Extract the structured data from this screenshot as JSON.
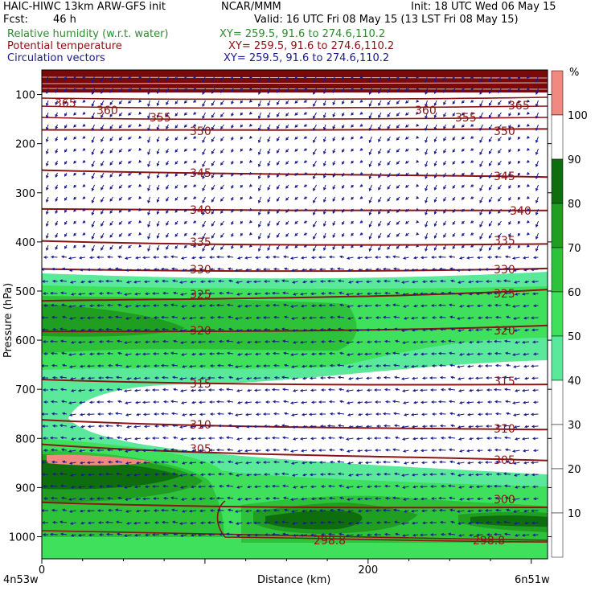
{
  "header": {
    "model": "HAIC-HIWC 13km ARW-GFS init",
    "org": "NCAR/MMM",
    "init": "Init: 18 UTC Wed 06 May 15",
    "fcst_label": "Fcst:",
    "fcst_value": "46 h",
    "valid": "Valid: 16 UTC Fri 08 May 15 (13 LST Fri 08 May 15)",
    "fields": [
      {
        "name": "Relative humidity (w.r.t. water)",
        "xy": "XY= 259.5, 91.6 to 274.6,110.2",
        "color": "#2e8b2e"
      },
      {
        "name": "Potential temperature",
        "xy": "XY= 259.5, 91.6 to 274.6,110.2",
        "color": "#8b1010"
      },
      {
        "name": "Circulation vectors",
        "xy": "XY= 259.5, 91.6 to 274.6,110.2",
        "color": "#1a1a8c"
      }
    ]
  },
  "chart_data": {
    "type": "heatmap",
    "xlabel": "Distance (km)",
    "ylabel": "Pressure (hPa)",
    "x_ticks": [
      0,
      200
    ],
    "y_ticks": [
      100,
      200,
      300,
      400,
      500,
      600,
      700,
      800,
      900,
      1000
    ],
    "xlim": [
      0,
      310
    ],
    "ylim": [
      50,
      1045
    ],
    "y_axis_inverted": true,
    "x_endpoint_labels": [
      "4n53w",
      "6n51w"
    ],
    "colorbar": {
      "unit": "%",
      "levels": [
        10,
        20,
        30,
        40,
        50,
        60,
        70,
        80,
        90,
        100
      ],
      "colors": {
        "50-60": "#5ae89a",
        "60-70": "#3fe05c",
        "70-80": "#2ec23a",
        "80-90": "#1f9e22",
        "90-100": "#0e6e0e",
        "100+": "#f08a80"
      }
    },
    "theta_labels": [
      "365",
      "360",
      "355",
      "350",
      "345",
      "340",
      "335",
      "330",
      "325",
      "320",
      "315",
      "310",
      "305",
      "300",
      "298.8",
      "298.8"
    ],
    "theta_contours": [
      {
        "value": 350,
        "p_left": 172,
        "p_right": 170
      },
      {
        "value": 345,
        "p_left": 254,
        "p_right": 268
      },
      {
        "value": 340,
        "p_left": 333,
        "p_right": 336
      },
      {
        "value": 335,
        "p_left": 398,
        "p_right": 404
      },
      {
        "value": 330,
        "p_left": 455,
        "p_right": 454
      },
      {
        "value": 325,
        "p_left": 520,
        "p_right": 497
      },
      {
        "value": 320,
        "p_left": 582,
        "p_right": 570
      },
      {
        "value": 315,
        "p_left": 680,
        "p_right": 690
      },
      {
        "value": 310,
        "p_left": 762,
        "p_right": 782
      },
      {
        "value": 305,
        "p_left": 812,
        "p_right": 845
      },
      {
        "value": 300,
        "p_left": 930,
        "p_right": 940
      }
    ]
  }
}
